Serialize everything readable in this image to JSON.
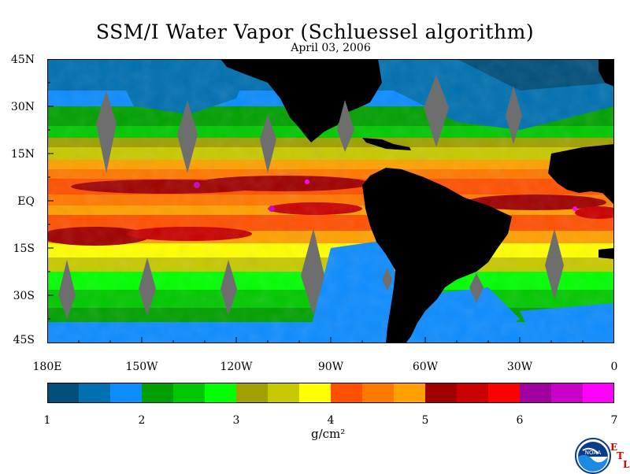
{
  "title": "SSM/I Water Vapor (Schluessel algorithm)",
  "subtitle": "April 03, 2006",
  "map": {
    "lat_labels": [
      "45N",
      "30N",
      "15N",
      "EQ",
      "15S",
      "30S",
      "45S"
    ],
    "lon_labels": [
      "180E",
      "150W",
      "120W",
      "90W",
      "60W",
      "30W",
      "0"
    ],
    "land_color": "#000000",
    "gap_color": "#6e6e6e"
  },
  "colorbar": {
    "colors": [
      "#004f7a",
      "#0070b0",
      "#0d8cff",
      "#00a000",
      "#00c800",
      "#00ff00",
      "#a0a000",
      "#c8c800",
      "#ffff00",
      "#ff5000",
      "#ff7800",
      "#ffa000",
      "#a00000",
      "#c80000",
      "#ff0000",
      "#a000a0",
      "#c800c8",
      "#ff00ff"
    ],
    "tick_labels": [
      "1",
      "2",
      "3",
      "4",
      "5",
      "6",
      "7"
    ],
    "range": [
      1,
      7
    ],
    "unit": "g/cm²"
  },
  "logo": {
    "agency": "NOAA",
    "lab_letters": [
      "E",
      "T",
      "L"
    ],
    "accent": "#d40000"
  }
}
